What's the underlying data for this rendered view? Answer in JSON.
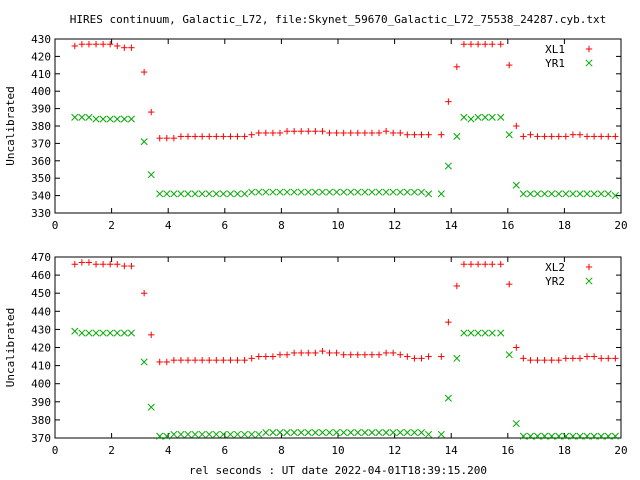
{
  "title": "HIRES continuum, Galactic_L72, file:Skynet_59670_Galactic_L72_75538_24287.cyb.txt",
  "xlabel": "rel seconds : UT date 2022-04-01T18:39:15.200",
  "colors": {
    "red": "#ff0000",
    "green": "#00aa00",
    "axis": "#000000",
    "background": "#ffffff"
  },
  "chart_data": [
    {
      "type": "scatter",
      "title": "HIRES continuum, Galactic_L72, file:Skynet_59670_Galactic_L72_75538_24287.cyb.txt",
      "xlabel": "",
      "ylabel": "Uncalibrated",
      "xlim": [
        0,
        20
      ],
      "ylim": [
        330,
        430
      ],
      "xticks": [
        0,
        2,
        4,
        6,
        8,
        10,
        12,
        14,
        16,
        18,
        20
      ],
      "yticks": [
        330,
        340,
        350,
        360,
        370,
        380,
        390,
        400,
        410,
        420,
        430
      ],
      "grid": false,
      "legend_position": "top-right",
      "series": [
        {
          "name": "XL1",
          "marker": "plus",
          "color": "#ff0000",
          "x": [
            0.7,
            0.95,
            1.2,
            1.45,
            1.7,
            1.95,
            2.2,
            2.45,
            2.7,
            3.15,
            3.4,
            3.7,
            3.95,
            4.2,
            4.45,
            4.7,
            4.95,
            5.2,
            5.45,
            5.7,
            5.95,
            6.2,
            6.45,
            6.7,
            6.95,
            7.2,
            7.45,
            7.7,
            7.95,
            8.2,
            8.45,
            8.7,
            8.95,
            9.2,
            9.45,
            9.7,
            9.95,
            10.2,
            10.45,
            10.7,
            10.95,
            11.2,
            11.45,
            11.7,
            11.95,
            12.2,
            12.45,
            12.7,
            12.95,
            13.2,
            13.65,
            13.9,
            14.2,
            14.45,
            14.7,
            14.95,
            15.2,
            15.45,
            15.75,
            16.05,
            16.3,
            16.55,
            16.8,
            17.05,
            17.3,
            17.55,
            17.8,
            18.05,
            18.3,
            18.55,
            18.8,
            19.05,
            19.3,
            19.55,
            19.8
          ],
          "y": [
            426,
            427,
            427,
            427,
            427,
            427,
            426,
            425,
            425,
            411,
            388,
            373,
            373,
            373,
            374,
            374,
            374,
            374,
            374,
            374,
            374,
            374,
            374,
            374,
            375,
            376,
            376,
            376,
            376,
            377,
            377,
            377,
            377,
            377,
            377,
            376,
            376,
            376,
            376,
            376,
            376,
            376,
            376,
            377,
            376,
            376,
            375,
            375,
            375,
            375,
            375,
            394,
            414,
            427,
            427,
            427,
            427,
            427,
            427,
            415,
            380,
            374,
            375,
            374,
            374,
            374,
            374,
            374,
            375,
            375,
            374,
            374,
            374,
            374,
            374
          ]
        },
        {
          "name": "YR1",
          "marker": "cross",
          "color": "#00aa00",
          "x": [
            0.7,
            0.95,
            1.2,
            1.45,
            1.7,
            1.95,
            2.2,
            2.45,
            2.7,
            3.15,
            3.4,
            3.7,
            3.95,
            4.2,
            4.45,
            4.7,
            4.95,
            5.2,
            5.45,
            5.7,
            5.95,
            6.2,
            6.45,
            6.7,
            6.95,
            7.2,
            7.45,
            7.7,
            7.95,
            8.2,
            8.45,
            8.7,
            8.95,
            9.2,
            9.45,
            9.7,
            9.95,
            10.2,
            10.45,
            10.7,
            10.95,
            11.2,
            11.45,
            11.7,
            11.95,
            12.2,
            12.45,
            12.7,
            12.95,
            13.2,
            13.65,
            13.9,
            14.2,
            14.45,
            14.7,
            14.95,
            15.2,
            15.45,
            15.75,
            16.05,
            16.3,
            16.55,
            16.8,
            17.05,
            17.3,
            17.55,
            17.8,
            18.05,
            18.3,
            18.55,
            18.8,
            19.05,
            19.3,
            19.55,
            19.8
          ],
          "y": [
            385,
            385,
            385,
            384,
            384,
            384,
            384,
            384,
            384,
            371,
            352,
            341,
            341,
            341,
            341,
            341,
            341,
            341,
            341,
            341,
            341,
            341,
            341,
            341,
            342,
            342,
            342,
            342,
            342,
            342,
            342,
            342,
            342,
            342,
            342,
            342,
            342,
            342,
            342,
            342,
            342,
            342,
            342,
            342,
            342,
            342,
            342,
            342,
            342,
            341,
            341,
            357,
            374,
            385,
            384,
            385,
            385,
            385,
            385,
            375,
            346,
            341,
            341,
            341,
            341,
            341,
            341,
            341,
            341,
            341,
            341,
            341,
            341,
            341,
            340
          ]
        }
      ]
    },
    {
      "type": "scatter",
      "title": "",
      "xlabel": "rel seconds : UT date 2022-04-01T18:39:15.200",
      "ylabel": "Uncalibrated",
      "xlim": [
        0,
        20
      ],
      "ylim": [
        370,
        470
      ],
      "xticks": [
        0,
        2,
        4,
        6,
        8,
        10,
        12,
        14,
        16,
        18,
        20
      ],
      "yticks": [
        370,
        380,
        390,
        400,
        410,
        420,
        430,
        440,
        450,
        460,
        470
      ],
      "grid": false,
      "legend_position": "top-right",
      "series": [
        {
          "name": "XL2",
          "marker": "plus",
          "color": "#ff0000",
          "x": [
            0.7,
            0.95,
            1.2,
            1.45,
            1.7,
            1.95,
            2.2,
            2.45,
            2.7,
            3.15,
            3.4,
            3.7,
            3.95,
            4.2,
            4.45,
            4.7,
            4.95,
            5.2,
            5.45,
            5.7,
            5.95,
            6.2,
            6.45,
            6.7,
            6.95,
            7.2,
            7.45,
            7.7,
            7.95,
            8.2,
            8.45,
            8.7,
            8.95,
            9.2,
            9.45,
            9.7,
            9.95,
            10.2,
            10.45,
            10.7,
            10.95,
            11.2,
            11.45,
            11.7,
            11.95,
            12.2,
            12.45,
            12.7,
            12.95,
            13.2,
            13.65,
            13.9,
            14.2,
            14.45,
            14.7,
            14.95,
            15.2,
            15.45,
            15.75,
            16.05,
            16.3,
            16.55,
            16.8,
            17.05,
            17.3,
            17.55,
            17.8,
            18.05,
            18.3,
            18.55,
            18.8,
            19.05,
            19.3,
            19.55,
            19.8
          ],
          "y": [
            466,
            467,
            467,
            466,
            466,
            466,
            466,
            465,
            465,
            450,
            427,
            412,
            412,
            413,
            413,
            413,
            413,
            413,
            413,
            413,
            413,
            413,
            413,
            413,
            414,
            415,
            415,
            415,
            416,
            416,
            417,
            417,
            417,
            417,
            418,
            417,
            417,
            416,
            416,
            416,
            416,
            416,
            416,
            417,
            417,
            416,
            415,
            414,
            414,
            415,
            415,
            434,
            454,
            466,
            466,
            466,
            466,
            466,
            466,
            455,
            420,
            414,
            413,
            413,
            413,
            413,
            413,
            414,
            414,
            414,
            415,
            415,
            414,
            414,
            414
          ]
        },
        {
          "name": "YR2",
          "marker": "cross",
          "color": "#00aa00",
          "x": [
            0.7,
            0.95,
            1.2,
            1.45,
            1.7,
            1.95,
            2.2,
            2.45,
            2.7,
            3.15,
            3.4,
            3.7,
            3.95,
            4.2,
            4.45,
            4.7,
            4.95,
            5.2,
            5.45,
            5.7,
            5.95,
            6.2,
            6.45,
            6.7,
            6.95,
            7.2,
            7.45,
            7.7,
            7.95,
            8.2,
            8.45,
            8.7,
            8.95,
            9.2,
            9.45,
            9.7,
            9.95,
            10.2,
            10.45,
            10.7,
            10.95,
            11.2,
            11.45,
            11.7,
            11.95,
            12.2,
            12.45,
            12.7,
            12.95,
            13.2,
            13.65,
            13.9,
            14.2,
            14.45,
            14.7,
            14.95,
            15.2,
            15.45,
            15.75,
            16.05,
            16.3,
            16.55,
            16.8,
            17.05,
            17.3,
            17.55,
            17.8,
            18.05,
            18.3,
            18.55,
            18.8,
            19.05,
            19.3,
            19.55,
            19.8
          ],
          "y": [
            429,
            428,
            428,
            428,
            428,
            428,
            428,
            428,
            428,
            412,
            387,
            371,
            371,
            372,
            372,
            372,
            372,
            372,
            372,
            372,
            372,
            372,
            372,
            372,
            372,
            372,
            373,
            373,
            373,
            373,
            373,
            373,
            373,
            373,
            373,
            373,
            373,
            373,
            373,
            373,
            373,
            373,
            373,
            373,
            373,
            373,
            373,
            373,
            373,
            372,
            372,
            392,
            414,
            428,
            428,
            428,
            428,
            428,
            428,
            416,
            378,
            371,
            371,
            371,
            371,
            371,
            371,
            371,
            371,
            371,
            371,
            371,
            371,
            371,
            371
          ]
        }
      ]
    }
  ]
}
